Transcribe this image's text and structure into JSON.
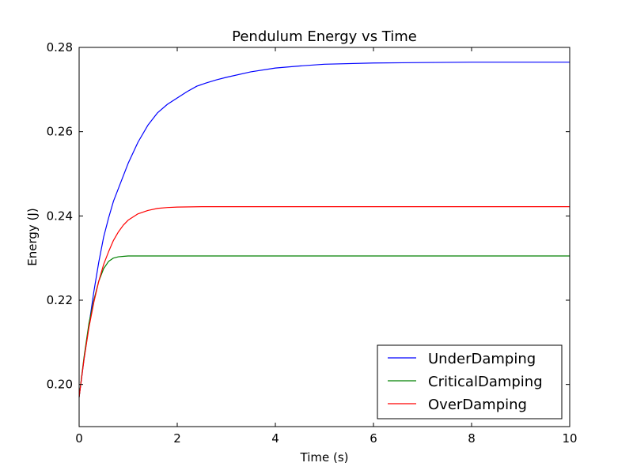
{
  "chart_data": {
    "type": "line",
    "title": "Pendulum Energy vs Time",
    "xlabel": "Time (s)",
    "ylabel": "Energy (J)",
    "xlim": [
      0,
      10
    ],
    "ylim": [
      0.19,
      0.28
    ],
    "xticks": [
      0,
      2,
      4,
      6,
      8,
      10
    ],
    "xtick_labels": [
      "0",
      "2",
      "4",
      "6",
      "8",
      "10"
    ],
    "yticks": [
      0.2,
      0.22,
      0.24,
      0.26,
      0.28
    ],
    "ytick_labels": [
      "0.20",
      "0.22",
      "0.24",
      "0.26",
      "0.28"
    ],
    "grid": false,
    "legend": "lower-right",
    "series": [
      {
        "name": "UnderDamping",
        "color": "#0000ff",
        "x": [
          0,
          0.1,
          0.2,
          0.3,
          0.4,
          0.5,
          0.6,
          0.7,
          0.8,
          1.0,
          1.2,
          1.4,
          1.6,
          1.8,
          2.0,
          2.2,
          2.4,
          2.6,
          2.8,
          3.0,
          3.5,
          4.0,
          4.5,
          5.0,
          6.0,
          7.0,
          8.0,
          9.0,
          10.0
        ],
        "values": [
          0.197,
          0.206,
          0.214,
          0.222,
          0.229,
          0.235,
          0.2395,
          0.2435,
          0.2465,
          0.2525,
          0.2575,
          0.2615,
          0.2645,
          0.2665,
          0.268,
          0.2695,
          0.2708,
          0.2716,
          0.2723,
          0.2729,
          0.2742,
          0.2751,
          0.2756,
          0.276,
          0.2763,
          0.2764,
          0.2765,
          0.2765,
          0.2765
        ]
      },
      {
        "name": "CriticalDamping",
        "color": "#008000",
        "x": [
          0,
          0.1,
          0.2,
          0.3,
          0.4,
          0.5,
          0.6,
          0.7,
          0.8,
          0.9,
          1.0,
          1.2,
          1.5,
          2.0,
          3.0,
          5.0,
          7.0,
          10.0
        ],
        "values": [
          0.197,
          0.2065,
          0.2145,
          0.22,
          0.2245,
          0.2275,
          0.2292,
          0.23,
          0.2303,
          0.2304,
          0.2305,
          0.2305,
          0.2305,
          0.2305,
          0.2305,
          0.2305,
          0.2305,
          0.2305
        ]
      },
      {
        "name": "OverDamping",
        "color": "#ff0000",
        "x": [
          0,
          0.1,
          0.2,
          0.3,
          0.4,
          0.5,
          0.6,
          0.7,
          0.8,
          0.9,
          1.0,
          1.2,
          1.4,
          1.6,
          1.8,
          2.0,
          2.5,
          3.0,
          4.0,
          6.0,
          8.0,
          10.0
        ],
        "values": [
          0.197,
          0.206,
          0.2135,
          0.2195,
          0.2245,
          0.2285,
          0.2315,
          0.2342,
          0.2362,
          0.2378,
          0.239,
          0.2405,
          0.2413,
          0.2418,
          0.242,
          0.2421,
          0.2422,
          0.2422,
          0.2422,
          0.2422,
          0.2422,
          0.2422
        ]
      }
    ]
  }
}
